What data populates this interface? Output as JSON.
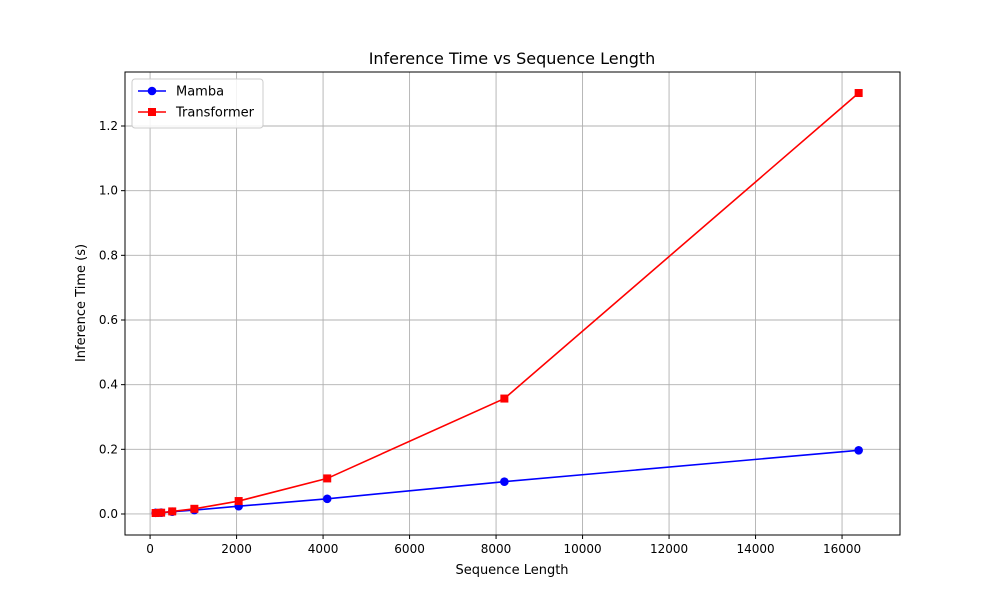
{
  "chart_data": {
    "type": "line",
    "title": "Inference Time vs Sequence Length",
    "xlabel": "Sequence Length",
    "ylabel": "Inference Time (s)",
    "xlim": [
      -580,
      17340
    ],
    "ylim": [
      -0.065,
      1.367
    ],
    "xticks": [
      0,
      2000,
      4000,
      6000,
      8000,
      10000,
      12000,
      14000,
      16000
    ],
    "yticks": [
      0.0,
      0.2,
      0.4,
      0.6,
      0.8,
      1.0,
      1.2
    ],
    "xtick_labels": [
      "0",
      "2000",
      "4000",
      "6000",
      "8000",
      "10000",
      "12000",
      "14000",
      "16000"
    ],
    "ytick_labels": [
      "0.0",
      "0.2",
      "0.4",
      "0.6",
      "0.8",
      "1.0",
      "1.2"
    ],
    "grid": true,
    "legend_position": "top-left",
    "x": [
      128,
      256,
      512,
      1024,
      2048,
      4096,
      8192,
      16384
    ],
    "series": [
      {
        "name": "Mamba",
        "color": "#0000ff",
        "marker": "circle",
        "values": [
          0.0035,
          0.004,
          0.007,
          0.012,
          0.024,
          0.047,
          0.1,
          0.197
        ]
      },
      {
        "name": "Transformer",
        "color": "#ff0000",
        "marker": "square",
        "values": [
          0.003,
          0.004,
          0.008,
          0.016,
          0.04,
          0.11,
          0.357,
          1.302
        ]
      }
    ]
  }
}
